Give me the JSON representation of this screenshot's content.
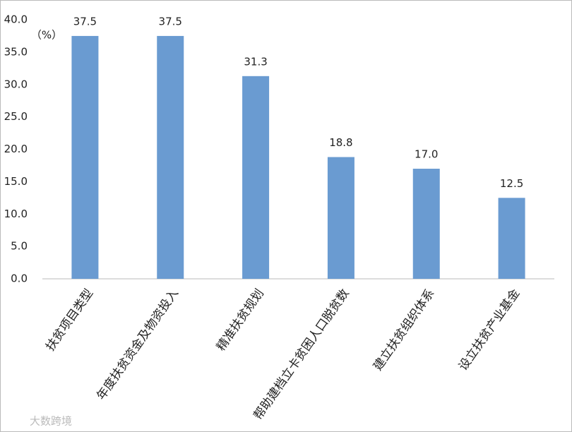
{
  "chart_data": {
    "type": "bar",
    "y_label": "（%）",
    "categories": [
      "扶贫项目类型",
      "年度扶贫资金及物资投入",
      "精准扶贫规划",
      "帮助建档立卡贫困人口脱贫数",
      "建立扶贫组织体系",
      "设立扶贫产业基金"
    ],
    "values": [
      37.5,
      37.5,
      31.3,
      18.8,
      17.0,
      12.5
    ],
    "value_labels": [
      "37.5",
      "37.5",
      "31.3",
      "18.8",
      "17.0",
      "12.5"
    ],
    "color": "#6a9bd1",
    "ylim": [
      0,
      40
    ],
    "yticks": [
      {
        "value": 0,
        "label": "0.0"
      },
      {
        "value": 5,
        "label": "5.0"
      },
      {
        "value": 10,
        "label": "10.0"
      },
      {
        "value": 15,
        "label": "15.0"
      },
      {
        "value": 20,
        "label": "20.0"
      },
      {
        "value": 25,
        "label": "25.0"
      },
      {
        "value": 30,
        "label": "30.0"
      },
      {
        "value": 35,
        "label": "35.0"
      },
      {
        "value": 40,
        "label": "40.0"
      }
    ],
    "grid": false,
    "watermark": "大数跨境"
  }
}
